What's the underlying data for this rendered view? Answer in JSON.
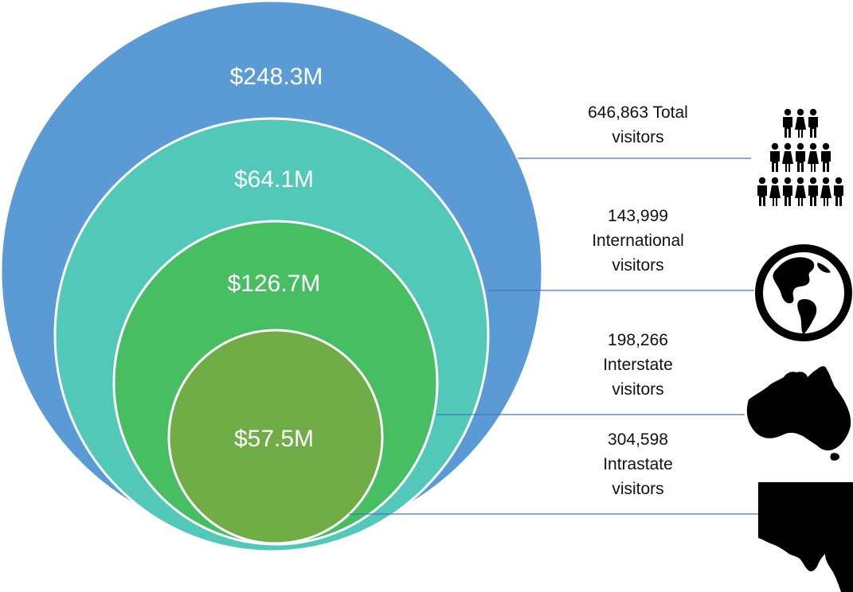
{
  "chart_data": {
    "type": "nested-bubble",
    "title": "",
    "unit": "USD",
    "series": [
      {
        "value_label": "$248.3M",
        "value_millions": 248.3,
        "visitors": "646,863",
        "caption_lines": [
          "646,863 Total",
          "visitors"
        ],
        "color": "#5b9bd5",
        "icon": "people-group-icon"
      },
      {
        "value_label": "$64.1M",
        "value_millions": 64.1,
        "visitors": "143,999",
        "caption_lines": [
          "143,999",
          "International",
          "visitors"
        ],
        "color": "#52c9b8",
        "icon": "globe-icon"
      },
      {
        "value_label": "$126.7M",
        "value_millions": 126.7,
        "visitors": "198,266",
        "caption_lines": [
          "198,266",
          "Interstate",
          "visitors"
        ],
        "color": "#47be62",
        "icon": "australia-map-icon"
      },
      {
        "value_label": "$57.5M",
        "value_millions": 57.5,
        "visitors": "304,598",
        "caption_lines": [
          "304,598",
          "Intrastate",
          "visitors"
        ],
        "color": "#70ad47",
        "icon": "state-map-icon"
      }
    ]
  },
  "colors": {
    "leader_line": "#4472c4",
    "circle_stroke": "#ffffff",
    "value_text": "#ffffff",
    "caption_text": "#111111",
    "icon_fill": "#000000"
  }
}
